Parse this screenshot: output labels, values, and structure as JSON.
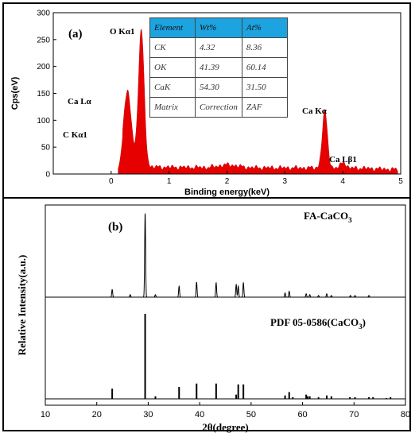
{
  "chart_data": [
    {
      "type": "area",
      "panel_label": "(a)",
      "xlabel": "Binding energy(keV)",
      "ylabel": "Cps(eV)",
      "xlim": [
        -1,
        5
      ],
      "ylim": [
        0,
        300
      ],
      "xticks": [
        "0",
        "1",
        "2",
        "3",
        "4",
        "5"
      ],
      "yticks": [
        "0",
        "50",
        "100",
        "150",
        "200",
        "250",
        "300"
      ],
      "fill_color": "#e60000",
      "peaks": [
        {
          "x": 0.28,
          "y": 139
        },
        {
          "x": 0.52,
          "y": 255
        },
        {
          "x": 3.69,
          "y": 105
        },
        {
          "x": 4.01,
          "y": 12
        }
      ],
      "annotations": [
        "O Kα1",
        "Ca Lα",
        "C Kα1",
        "Ca Kα",
        "Ca Lβ1"
      ],
      "table": {
        "header": [
          "Element",
          "Wt%",
          "At%"
        ],
        "rows": [
          [
            "CK",
            "4.32",
            "8.36"
          ],
          [
            "OK",
            "41.39",
            "60.14"
          ],
          [
            "CaK",
            "54.30",
            "31.50"
          ],
          [
            "Matrix",
            "Correction",
            "ZAF"
          ]
        ]
      }
    },
    {
      "type": "line",
      "panel_label": "(b)",
      "xlabel": "2θ(degree)",
      "ylabel": "Relative Intensity(a.u.)",
      "xlim": [
        10,
        80
      ],
      "xticks": [
        "10",
        "20",
        "30",
        "40",
        "50",
        "60",
        "70",
        "80"
      ],
      "series": [
        {
          "name": "FA-CaCO3",
          "name_main": "FA-CaCO",
          "name_sub": "3",
          "peaks": [
            {
              "x": 23.0,
              "y": 9
            },
            {
              "x": 26.5,
              "y": 3
            },
            {
              "x": 29.4,
              "y": 100
            },
            {
              "x": 31.4,
              "y": 3
            },
            {
              "x": 36.0,
              "y": 13
            },
            {
              "x": 39.4,
              "y": 18
            },
            {
              "x": 43.2,
              "y": 17
            },
            {
              "x": 47.1,
              "y": 15
            },
            {
              "x": 47.5,
              "y": 13
            },
            {
              "x": 48.5,
              "y": 17
            },
            {
              "x": 56.6,
              "y": 5
            },
            {
              "x": 57.4,
              "y": 7
            },
            {
              "x": 60.7,
              "y": 4
            },
            {
              "x": 61.4,
              "y": 3
            },
            {
              "x": 63.1,
              "y": 2
            },
            {
              "x": 64.7,
              "y": 4
            },
            {
              "x": 65.6,
              "y": 2
            },
            {
              "x": 69.3,
              "y": 2
            },
            {
              "x": 70.2,
              "y": 2
            },
            {
              "x": 72.9,
              "y": 2
            }
          ]
        },
        {
          "name": "PDF 05-0586(CaCO3)",
          "name_main": "PDF 05-0586(CaCO",
          "name_sub": "3",
          "name_tail": ")",
          "sticks": [
            {
              "x": 23.0,
              "y": 12
            },
            {
              "x": 29.4,
              "y": 100
            },
            {
              "x": 31.4,
              "y": 3
            },
            {
              "x": 36.0,
              "y": 14
            },
            {
              "x": 39.4,
              "y": 18
            },
            {
              "x": 43.2,
              "y": 18
            },
            {
              "x": 47.1,
              "y": 5
            },
            {
              "x": 47.5,
              "y": 17
            },
            {
              "x": 48.5,
              "y": 17
            },
            {
              "x": 56.6,
              "y": 4
            },
            {
              "x": 57.4,
              "y": 8
            },
            {
              "x": 58.1,
              "y": 2
            },
            {
              "x": 60.7,
              "y": 5
            },
            {
              "x": 61.0,
              "y": 3
            },
            {
              "x": 61.4,
              "y": 3
            },
            {
              "x": 63.1,
              "y": 2
            },
            {
              "x": 64.7,
              "y": 4
            },
            {
              "x": 65.6,
              "y": 3
            },
            {
              "x": 69.2,
              "y": 2
            },
            {
              "x": 70.2,
              "y": 2
            },
            {
              "x": 72.9,
              "y": 2
            },
            {
              "x": 73.7,
              "y": 2
            },
            {
              "x": 76.3,
              "y": 1
            },
            {
              "x": 77.1,
              "y": 2
            }
          ]
        }
      ]
    }
  ]
}
